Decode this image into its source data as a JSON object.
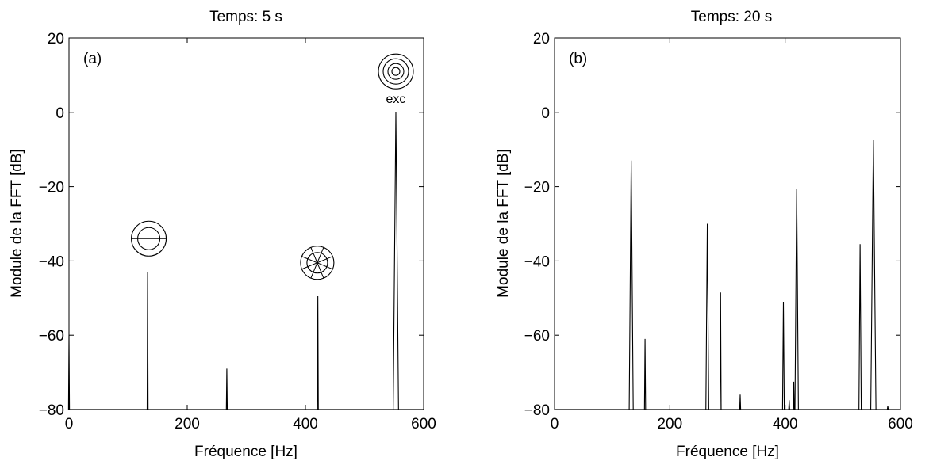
{
  "chart_data": [
    {
      "type": "line",
      "panel_label": "(a)",
      "title": "Temps: 5 s",
      "xlabel": "Fréquence [Hz]",
      "ylabel": "Module de la FFT [dB]",
      "xlim": [
        0,
        600
      ],
      "ylim": [
        -80,
        20
      ],
      "xticks": [
        0,
        200,
        400,
        600
      ],
      "yticks": [
        20,
        0,
        -20,
        -40,
        -60,
        -80
      ],
      "xtick_labels": [
        "0",
        "200",
        "400",
        "600"
      ],
      "ytick_labels": [
        "20",
        "0",
        "−20",
        "−40",
        "−60",
        "−80"
      ],
      "grid": false,
      "baseline": -80,
      "peaks": [
        {
          "x": 0,
          "y": -60,
          "width": 0.5
        },
        {
          "x": 133,
          "y": -43,
          "width": 1.5
        },
        {
          "x": 267,
          "y": -69,
          "width": 1.0
        },
        {
          "x": 421,
          "y": -49.5,
          "width": 1.5
        },
        {
          "x": 553,
          "y": 0,
          "width": 9
        }
      ],
      "annotations": [
        {
          "kind": "mode-icon-diametral",
          "x": 135,
          "y": -34
        },
        {
          "kind": "mode-icon-radial",
          "x": 420,
          "y": -40.5
        },
        {
          "kind": "mode-icon-concentric",
          "x": 553,
          "y": 11,
          "text": "exc"
        }
      ]
    },
    {
      "type": "line",
      "panel_label": "(b)",
      "title": "Temps: 20 s",
      "xlabel": "Fréquence [Hz]",
      "ylabel": "Module de la FFT [dB]",
      "xlim": [
        0,
        600
      ],
      "ylim": [
        -80,
        20
      ],
      "xticks": [
        0,
        200,
        400,
        600
      ],
      "yticks": [
        20,
        0,
        -20,
        -40,
        -60,
        -80
      ],
      "xtick_labels": [
        "0",
        "200",
        "400",
        "600"
      ],
      "ytick_labels": [
        "20",
        "0",
        "−20",
        "−40",
        "−60",
        "−80"
      ],
      "grid": false,
      "baseline": -80,
      "peaks": [
        {
          "x": 133,
          "y": -13,
          "width": 7
        },
        {
          "x": 157,
          "y": -61,
          "width": 2
        },
        {
          "x": 265,
          "y": -30,
          "width": 5
        },
        {
          "x": 288,
          "y": -48.5,
          "width": 2
        },
        {
          "x": 322,
          "y": -76,
          "width": 1.5
        },
        {
          "x": 397,
          "y": -51,
          "width": 3
        },
        {
          "x": 407,
          "y": -77.5,
          "width": 1
        },
        {
          "x": 415,
          "y": -72.5,
          "width": 1.5
        },
        {
          "x": 420,
          "y": -20.5,
          "width": 6
        },
        {
          "x": 530,
          "y": -35.5,
          "width": 4
        },
        {
          "x": 553,
          "y": -7.5,
          "width": 9
        },
        {
          "x": 578,
          "y": -79,
          "width": 1
        }
      ],
      "annotations": []
    }
  ]
}
